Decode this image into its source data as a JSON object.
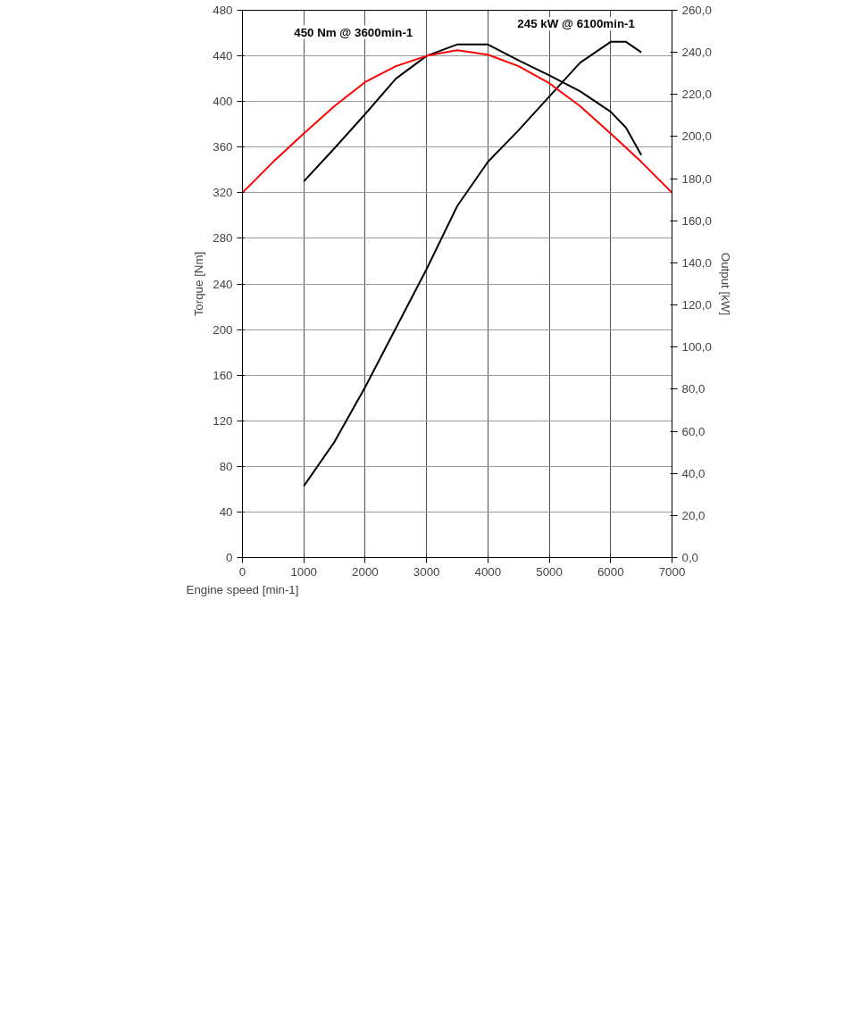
{
  "chart_data": {
    "type": "line",
    "xlabel": "Engine speed [min-1]",
    "ylabel": "Torque [Nm]",
    "y2label": "Output [kW]",
    "annotations": [
      "450 Nm @ 3600min-1",
      "245 kW @ 6100min-1"
    ],
    "series": [
      {
        "color": "#000000",
        "x": [
          1000,
          1500,
          2000,
          2500,
          3000,
          3500,
          4000,
          4500,
          5000,
          5500,
          6000,
          6250,
          6500
        ],
        "values": [
          330,
          359,
          389,
          420,
          440,
          450,
          450,
          436,
          423,
          409,
          391,
          377,
          353
        ]
      },
      {
        "color": "#000000",
        "axis": "y2",
        "x": [
          1000,
          1500,
          2000,
          2500,
          3000,
          3500,
          4000,
          4500,
          5000,
          5500,
          6000,
          6250,
          6500
        ],
        "values": [
          34,
          55,
          81,
          109,
          137,
          167,
          188,
          203,
          219,
          235,
          245,
          245,
          240
        ]
      },
      {
        "color": "#ff0000",
        "x": [
          0,
          500,
          1000,
          1500,
          2000,
          2500,
          3000,
          3500,
          4000,
          4500,
          5000,
          5500,
          6000,
          6500,
          7000
        ],
        "values": [
          320,
          347,
          372,
          396,
          417,
          431,
          440,
          445,
          441,
          431,
          416,
          396,
          372,
          347,
          320
        ]
      }
    ],
    "xlim": [
      0,
      7000
    ],
    "xticks": [
      0,
      1000,
      2000,
      3000,
      4000,
      5000,
      6000,
      7000
    ],
    "ylim": [
      0,
      480
    ],
    "yticks": [
      0,
      40,
      80,
      120,
      160,
      200,
      240,
      280,
      320,
      360,
      400,
      440,
      480
    ],
    "y2lim": [
      0,
      260
    ],
    "y2ticks": [
      {
        "value": 0,
        "label": "0,0"
      },
      {
        "value": 20,
        "label": "20,0"
      },
      {
        "value": 40,
        "label": "40,0"
      },
      {
        "value": 60,
        "label": "60,0"
      },
      {
        "value": 80,
        "label": "80,0"
      },
      {
        "value": 100,
        "label": "100,0"
      },
      {
        "value": 120,
        "label": "120,0"
      },
      {
        "value": 140,
        "label": "140,0"
      },
      {
        "value": 160,
        "label": "160,0"
      },
      {
        "value": 180,
        "label": "180,0"
      },
      {
        "value": 200,
        "label": "200,0"
      },
      {
        "value": 220,
        "label": "220,0"
      },
      {
        "value": 240,
        "label": "240,0"
      },
      {
        "value": 260,
        "label": "260,0"
      }
    ],
    "grid": true
  }
}
